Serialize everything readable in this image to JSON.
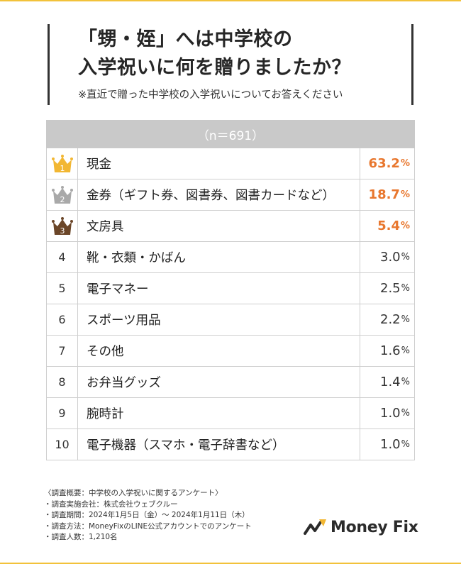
{
  "colors": {
    "accent": "#e8772e",
    "gold": "#f2b733",
    "silver": "#a9a9a9",
    "bronze": "#6b4628",
    "header_bg": "#c9c9c9",
    "frame": "#f2c23a"
  },
  "title_line1": "「甥・姪」へは中学校の",
  "title_line2": "入学祝いに何を贈りましたか？",
  "subtitle": "※直近で贈った中学校の入学祝いについてお答えください",
  "table_header": "（n＝691）",
  "rows": [
    {
      "rank": "1",
      "label": "現金",
      "value": "63.2",
      "unit": "%",
      "crown": "gold-crown-icon"
    },
    {
      "rank": "2",
      "label": "金券（ギフト券、図書券、図書カードなど）",
      "value": "18.7",
      "unit": "%",
      "crown": "silver-crown-icon"
    },
    {
      "rank": "3",
      "label": "文房具",
      "value": "5.4",
      "unit": "%",
      "crown": "bronze-crown-icon"
    },
    {
      "rank": "4",
      "label": "靴・衣類・かばん",
      "value": "3.0",
      "unit": "%"
    },
    {
      "rank": "5",
      "label": "電子マネー",
      "value": "2.5",
      "unit": "%"
    },
    {
      "rank": "6",
      "label": "スポーツ用品",
      "value": "2.2",
      "unit": "%"
    },
    {
      "rank": "7",
      "label": "その他",
      "value": "1.6",
      "unit": "%"
    },
    {
      "rank": "8",
      "label": "お弁当グッズ",
      "value": "1.4",
      "unit": "%"
    },
    {
      "rank": "9",
      "label": "腕時計",
      "value": "1.0",
      "unit": "%"
    },
    {
      "rank": "10",
      "label": "電子機器（スマホ・電子辞書など）",
      "value": "1.0",
      "unit": "%"
    }
  ],
  "footer": [
    "〈調査概要：中学校の入学祝いに関するアンケート〉",
    "・調査実施会社：株式会社ウェブクルー",
    "・調査期間：2024年1月5日（金）～ 2024年1月11日（木）",
    "・調査方法：MoneyFixのLINE公式アカウントでのアンケート",
    "・調査人数：1,210名"
  ],
  "logo_text": "Money Fix"
}
